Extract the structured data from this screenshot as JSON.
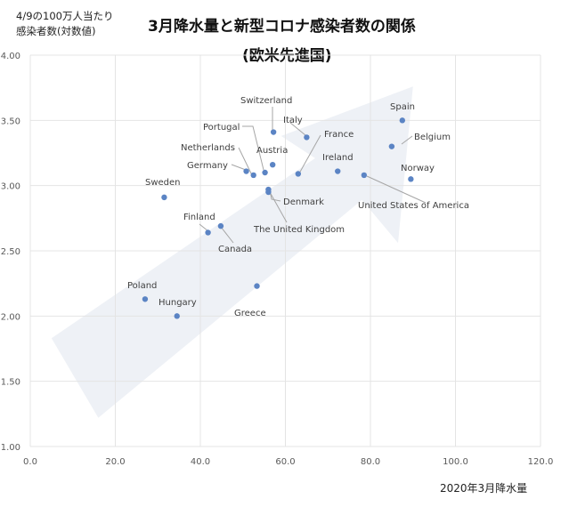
{
  "chart_data": {
    "type": "scatter",
    "title": [
      "3月降水量と新型コロナ感染者数の関係",
      "(欧米先進国)"
    ],
    "ylabel": [
      "4/9の100万人当たり",
      "感染者数(対数値)"
    ],
    "xlabel": "2020年3月降水量",
    "xlim": [
      0,
      120
    ],
    "ylim": [
      1.0,
      4.0
    ],
    "xticks": [
      0,
      20,
      40,
      60,
      80,
      100,
      120
    ],
    "yticks": [
      1.0,
      1.5,
      2.0,
      2.5,
      3.0,
      3.5,
      4.0
    ],
    "xtick_labels": [
      "0.0",
      "20.0",
      "40.0",
      "60.0",
      "80.0",
      "100.0",
      "120.0"
    ],
    "ytick_labels": [
      "1.00",
      "1.50",
      "2.00",
      "2.50",
      "3.00",
      "3.50",
      "4.00"
    ],
    "grid": true,
    "point_color": "#5b84c4",
    "arrow_color": "#eef1f6",
    "points": [
      {
        "label": "Spain",
        "x": 87.5,
        "y": 3.5
      },
      {
        "label": "Belgium",
        "x": 85.0,
        "y": 3.3
      },
      {
        "label": "Norway",
        "x": 89.5,
        "y": 3.05
      },
      {
        "label": "United States of America",
        "x": 78.5,
        "y": 3.08
      },
      {
        "label": "Ireland",
        "x": 72.3,
        "y": 3.11
      },
      {
        "label": "France",
        "x": 63.0,
        "y": 3.09
      },
      {
        "label": "Italy",
        "x": 65.0,
        "y": 3.37
      },
      {
        "label": "Switzerland",
        "x": 57.2,
        "y": 3.41
      },
      {
        "label": "Austria",
        "x": 57.0,
        "y": 3.16
      },
      {
        "label": "Portugal",
        "x": 55.2,
        "y": 3.1
      },
      {
        "label": "Netherlands",
        "x": 52.5,
        "y": 3.08
      },
      {
        "label": "Germany",
        "x": 50.8,
        "y": 3.11
      },
      {
        "label": "Denmark",
        "x": 56.0,
        "y": 2.97
      },
      {
        "label": "The United Kingdom",
        "x": 56.0,
        "y": 2.95
      },
      {
        "label": "Sweden",
        "x": 31.5,
        "y": 2.91
      },
      {
        "label": "Finland",
        "x": 41.8,
        "y": 2.64
      },
      {
        "label": "Canada",
        "x": 44.8,
        "y": 2.69
      },
      {
        "label": "Greece",
        "x": 53.3,
        "y": 2.23
      },
      {
        "label": "Poland",
        "x": 27.0,
        "y": 2.13
      },
      {
        "label": "Hungary",
        "x": 34.5,
        "y": 2.0
      }
    ]
  }
}
